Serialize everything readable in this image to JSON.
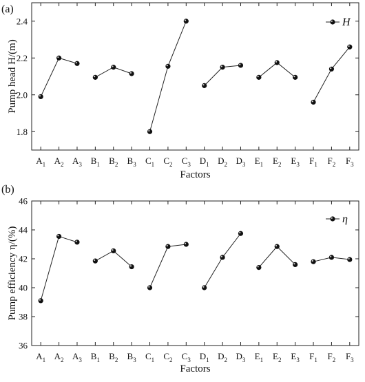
{
  "chart_data": [
    {
      "type": "line",
      "panel_label": "(a)",
      "xlabel": "Factors",
      "ylabel": "Pump head H/(m)",
      "ylim": [
        1.7,
        2.5
      ],
      "yticks": [
        1.8,
        2.0,
        2.2,
        2.4
      ],
      "ytick_labels": [
        "1.8",
        "2.0",
        "2.2",
        "2.4"
      ],
      "legend": {
        "label": "H",
        "position": "top-right"
      },
      "groups": [
        {
          "factor": "A",
          "points": [
            {
              "base": "A",
              "sub": "1",
              "y": 1.99
            },
            {
              "base": "A",
              "sub": "2",
              "y": 2.2
            },
            {
              "base": "A",
              "sub": "3",
              "y": 2.17
            }
          ]
        },
        {
          "factor": "B",
          "points": [
            {
              "base": "B",
              "sub": "1",
              "y": 2.095
            },
            {
              "base": "B",
              "sub": "2",
              "y": 2.15
            },
            {
              "base": "B",
              "sub": "3",
              "y": 2.115
            }
          ]
        },
        {
          "factor": "C",
          "points": [
            {
              "base": "C",
              "sub": "1",
              "y": 1.8
            },
            {
              "base": "C",
              "sub": "2",
              "y": 2.155
            },
            {
              "base": "C",
              "sub": "3",
              "y": 2.4
            }
          ]
        },
        {
          "factor": "D",
          "points": [
            {
              "base": "D",
              "sub": "1",
              "y": 2.05
            },
            {
              "base": "D",
              "sub": "2",
              "y": 2.15
            },
            {
              "base": "D",
              "sub": "3",
              "y": 2.16
            }
          ]
        },
        {
          "factor": "E",
          "points": [
            {
              "base": "E",
              "sub": "1",
              "y": 2.095
            },
            {
              "base": "E",
              "sub": "2",
              "y": 2.175
            },
            {
              "base": "E",
              "sub": "3",
              "y": 2.095
            }
          ]
        },
        {
          "factor": "F",
          "points": [
            {
              "base": "F",
              "sub": "1",
              "y": 1.96
            },
            {
              "base": "F",
              "sub": "2",
              "y": 2.14
            },
            {
              "base": "F",
              "sub": "3",
              "y": 2.26
            }
          ]
        }
      ]
    },
    {
      "type": "line",
      "panel_label": "(b)",
      "xlabel": "Factors",
      "ylabel": "Pump efficiency η/(%)",
      "ylim": [
        36,
        46
      ],
      "yticks": [
        36,
        38,
        40,
        42,
        44,
        46
      ],
      "ytick_labels": [
        "36",
        "38",
        "40",
        "42",
        "44",
        "46"
      ],
      "legend": {
        "label": "η",
        "position": "top-right"
      },
      "groups": [
        {
          "factor": "A",
          "points": [
            {
              "base": "A",
              "sub": "1",
              "y": 39.1
            },
            {
              "base": "A",
              "sub": "2",
              "y": 43.55
            },
            {
              "base": "A",
              "sub": "3",
              "y": 43.15
            }
          ]
        },
        {
          "factor": "B",
          "points": [
            {
              "base": "B",
              "sub": "1",
              "y": 41.85
            },
            {
              "base": "B",
              "sub": "2",
              "y": 42.55
            },
            {
              "base": "B",
              "sub": "3",
              "y": 41.45
            }
          ]
        },
        {
          "factor": "C",
          "points": [
            {
              "base": "C",
              "sub": "1",
              "y": 40.0
            },
            {
              "base": "C",
              "sub": "2",
              "y": 42.85
            },
            {
              "base": "C",
              "sub": "3",
              "y": 43.0
            }
          ]
        },
        {
          "factor": "D",
          "points": [
            {
              "base": "D",
              "sub": "1",
              "y": 40.0
            },
            {
              "base": "D",
              "sub": "2",
              "y": 42.1
            },
            {
              "base": "D",
              "sub": "3",
              "y": 43.75
            }
          ]
        },
        {
          "factor": "E",
          "points": [
            {
              "base": "E",
              "sub": "1",
              "y": 41.4
            },
            {
              "base": "E",
              "sub": "2",
              "y": 42.85
            },
            {
              "base": "E",
              "sub": "3",
              "y": 41.6
            }
          ]
        },
        {
          "factor": "F",
          "points": [
            {
              "base": "F",
              "sub": "1",
              "y": 41.8
            },
            {
              "base": "F",
              "sub": "2",
              "y": 42.1
            },
            {
              "base": "F",
              "sub": "3",
              "y": 41.95
            }
          ]
        }
      ]
    }
  ]
}
